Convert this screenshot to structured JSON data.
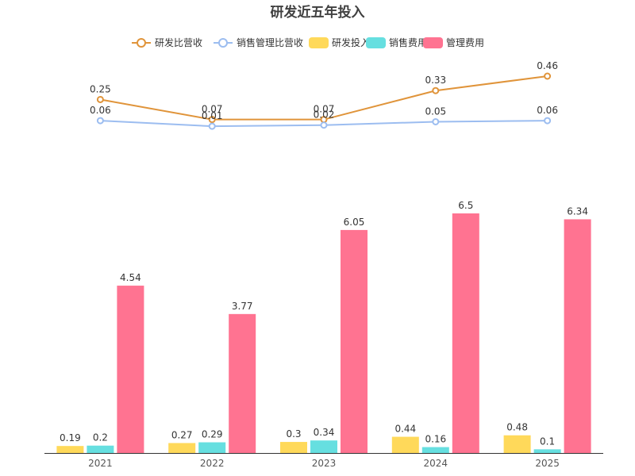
{
  "chart_data": {
    "type": "bar",
    "title": "研发近五年投入",
    "categories": [
      "2021",
      "2022",
      "2023",
      "2024",
      "2025"
    ],
    "legend": {
      "position": "top",
      "items": [
        "研发比营收",
        "销售管理比营收",
        "研发投入",
        "销售费用",
        "管理费用"
      ]
    },
    "series": [
      {
        "name": "研发投入",
        "kind": "bar",
        "color": "#FFD95A",
        "values": [
          0.19,
          0.27,
          0.3,
          0.44,
          0.48
        ],
        "labels": [
          "0.19",
          "0.27",
          "0.3",
          "0.44",
          "0.48"
        ]
      },
      {
        "name": "销售费用",
        "kind": "bar",
        "color": "#66DFE0",
        "values": [
          0.2,
          0.29,
          0.34,
          0.16,
          0.1
        ],
        "labels": [
          "0.2",
          "0.29",
          "0.34",
          "0.16",
          "0.1"
        ]
      },
      {
        "name": "管理费用",
        "kind": "bar",
        "color": "#FF7391",
        "values": [
          4.54,
          3.77,
          6.05,
          6.5,
          6.34
        ],
        "labels": [
          "4.54",
          "3.77",
          "6.05",
          "6.5",
          "6.34"
        ]
      }
    ],
    "line_series": [
      {
        "name": "研发比营收",
        "kind": "line",
        "color": "#E0943A",
        "values": [
          0.25,
          0.07,
          0.07,
          0.33,
          0.46
        ],
        "labels": [
          "0.25",
          "0.07",
          "0.07",
          "0.33",
          "0.46"
        ]
      },
      {
        "name": "销售管理比营收",
        "kind": "line",
        "color": "#9CBDF0",
        "values": [
          0.06,
          0.01,
          0.02,
          0.05,
          0.06
        ],
        "labels": [
          "0.06",
          "0.01",
          "0.02",
          "0.05",
          "0.06"
        ]
      }
    ],
    "bar_axis": {
      "min": 0,
      "max": 6.5
    },
    "line_axis": {
      "min": 0,
      "max": 0.46
    },
    "xlabel": "",
    "ylabel": "",
    "grid": false,
    "x_axis_line_color": "#333333"
  }
}
